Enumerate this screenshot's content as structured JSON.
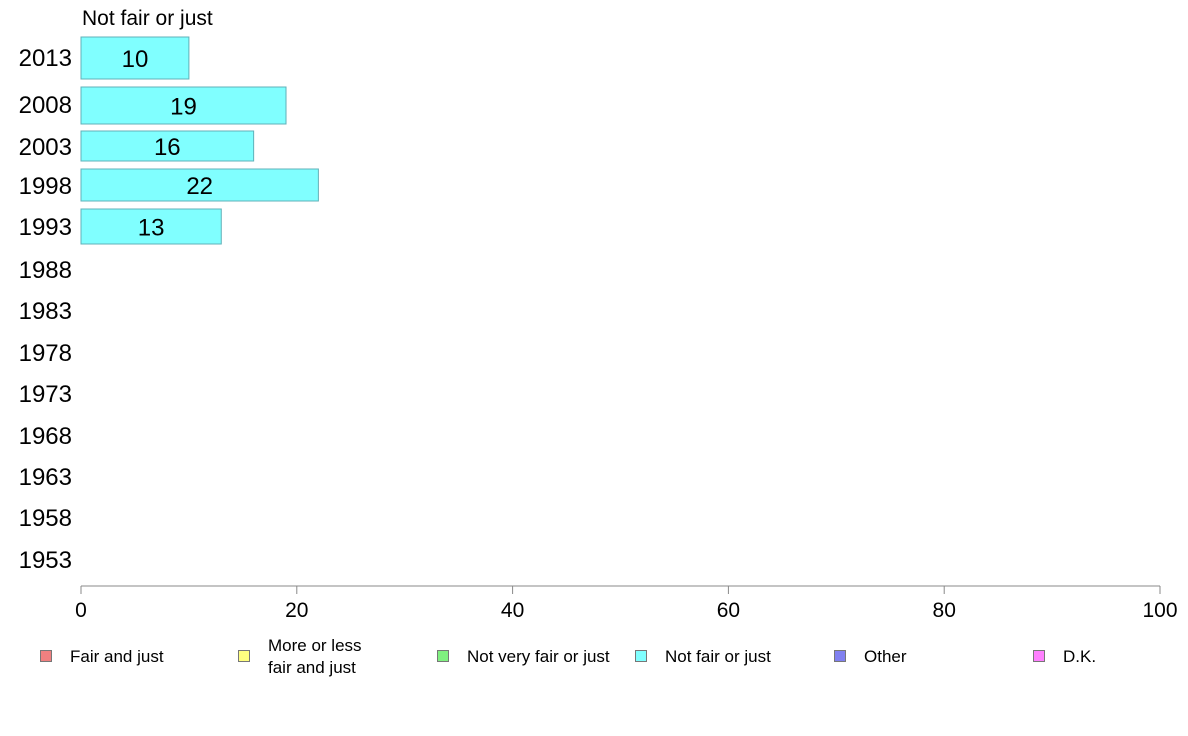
{
  "chart_data": {
    "type": "bar",
    "orientation": "horizontal",
    "title": "Not fair or just",
    "categories": [
      "2013",
      "2008",
      "2003",
      "1998",
      "1993",
      "1988",
      "1983",
      "1978",
      "1973",
      "1968",
      "1963",
      "1958",
      "1953"
    ],
    "series": [
      {
        "name": "Not fair or just",
        "values": [
          10,
          19,
          16,
          22,
          13,
          null,
          null,
          null,
          null,
          null,
          null,
          null,
          null
        ]
      }
    ],
    "xlim": [
      0,
      100
    ],
    "xticks": [
      0,
      20,
      40,
      60,
      80,
      100
    ],
    "grid": false,
    "legend_position": "bottom",
    "legend": [
      {
        "label": "Fair and just",
        "color": "#f08080"
      },
      {
        "label": "More or less\nfair and just",
        "color": "#ffff80"
      },
      {
        "label": "Not very fair or just",
        "color": "#80f080"
      },
      {
        "label": "Not fair or just",
        "color": "#80ffff"
      },
      {
        "label": "Other",
        "color": "#8080f0"
      },
      {
        "label": "D.K.",
        "color": "#ff80ff"
      }
    ],
    "bar_color": "#80ffff",
    "bar_border": "#60b0b8"
  }
}
